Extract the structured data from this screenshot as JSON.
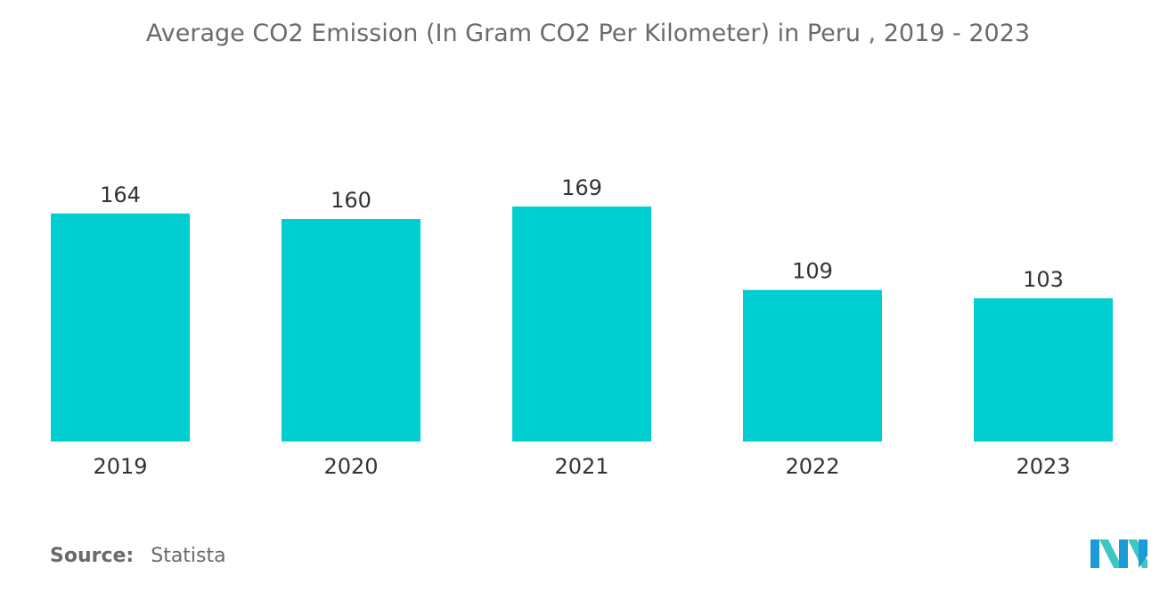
{
  "chart_data": {
    "type": "bar",
    "title": "Average CO2 Emission (In Gram CO2 Per Kilometer) in Peru , 2019 - 2023",
    "categories": [
      "2019",
      "2020",
      "2021",
      "2022",
      "2023"
    ],
    "values": [
      164,
      160,
      169,
      109,
      103
    ],
    "data_labels": [
      "164",
      "160",
      "169",
      "109",
      "103"
    ],
    "xlabel": "",
    "ylabel": "",
    "ylim": [
      0,
      169
    ],
    "grid": false,
    "legend": "none",
    "bar_color": "#00CED1"
  },
  "footer": {
    "source_label": "Source:",
    "source_value": "Statista"
  },
  "logo": {
    "icon": "mordor-intelligence-logo-icon",
    "colors": [
      "#1b9bd7",
      "#3ec6c6"
    ]
  }
}
